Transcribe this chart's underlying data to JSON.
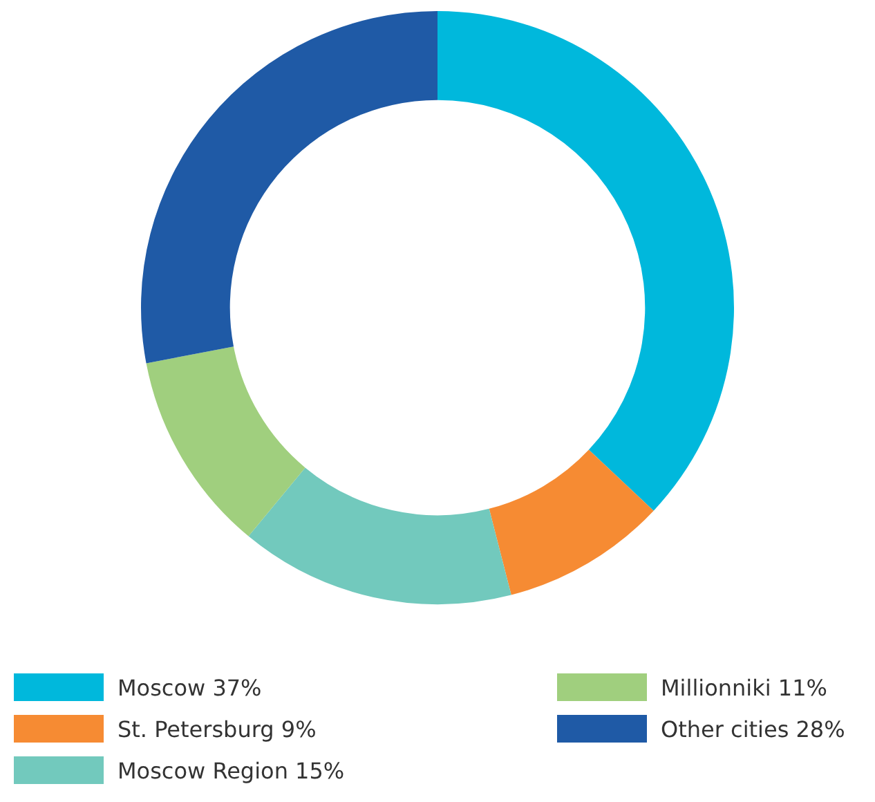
{
  "chart_data": {
    "type": "donut",
    "categories": [
      "Moscow",
      "St. Petersburg",
      "Moscow Region",
      "Millionniki",
      "Other cities"
    ],
    "values": [
      37,
      9,
      15,
      11,
      28
    ],
    "value_labels": [
      "37%",
      "9%",
      "15%",
      "11%",
      "28%"
    ],
    "colors": [
      "#00b8dc",
      "#f68b33",
      "#72c9bd",
      "#a0cf7e",
      "#1f5aa6"
    ],
    "legend": "bottom"
  }
}
